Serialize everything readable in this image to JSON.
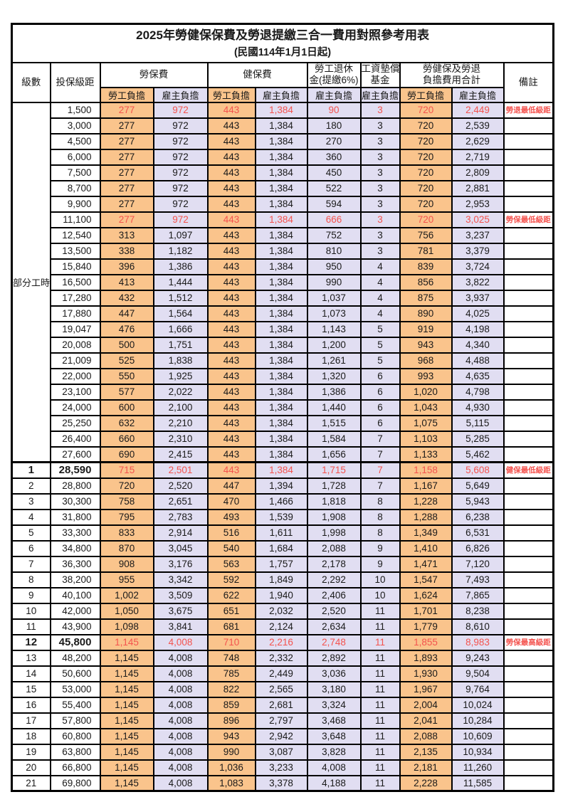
{
  "colors": {
    "orange": "#fac48c",
    "lavender": "#e1def2",
    "red": "#f4534e",
    "border": "#000000"
  },
  "title": "2025年勞健保保費及勞退提繳三合一費用對照參考用表",
  "subtitle": "(民國114年1月1日起)",
  "header": {
    "col_level": "級數",
    "col_salary": "投保級距",
    "grp_labor": "勞保費",
    "grp_health": "健保費",
    "grp_pension_l1": "勞工退休",
    "grp_pension_l2": "金(提繳6%)",
    "grp_wage_l1": "工資墊償",
    "grp_wage_l2": "基金",
    "grp_total_l1": "勞健保及勞退",
    "grp_total_l2": "負擔費用合計",
    "col_note": "備註",
    "sub_employee": "勞工負擔",
    "sub_employer": "雇主負擔"
  },
  "table": {
    "part_time_label": "部分工時",
    "part_time_rowspan": 23,
    "rows": [
      {
        "lv": null,
        "sal": "1,500",
        "v": [
          "277",
          "972",
          "443",
          "1,384",
          "90",
          "3",
          "720",
          "2,449"
        ],
        "note": "勞退最低級距",
        "red": true,
        "bold": false,
        "sep": false
      },
      {
        "lv": null,
        "sal": "3,000",
        "v": [
          "277",
          "972",
          "443",
          "1,384",
          "180",
          "3",
          "720",
          "2,539"
        ],
        "note": "",
        "red": false,
        "bold": false,
        "sep": false
      },
      {
        "lv": null,
        "sal": "4,500",
        "v": [
          "277",
          "972",
          "443",
          "1,384",
          "270",
          "3",
          "720",
          "2,629"
        ],
        "note": "",
        "red": false,
        "bold": false,
        "sep": false
      },
      {
        "lv": null,
        "sal": "6,000",
        "v": [
          "277",
          "972",
          "443",
          "1,384",
          "360",
          "3",
          "720",
          "2,719"
        ],
        "note": "",
        "red": false,
        "bold": false,
        "sep": false
      },
      {
        "lv": null,
        "sal": "7,500",
        "v": [
          "277",
          "972",
          "443",
          "1,384",
          "450",
          "3",
          "720",
          "2,809"
        ],
        "note": "",
        "red": false,
        "bold": false,
        "sep": false
      },
      {
        "lv": null,
        "sal": "8,700",
        "v": [
          "277",
          "972",
          "443",
          "1,384",
          "522",
          "3",
          "720",
          "2,881"
        ],
        "note": "",
        "red": false,
        "bold": false,
        "sep": false
      },
      {
        "lv": null,
        "sal": "9,900",
        "v": [
          "277",
          "972",
          "443",
          "1,384",
          "594",
          "3",
          "720",
          "2,953"
        ],
        "note": "",
        "red": false,
        "bold": false,
        "sep": false
      },
      {
        "lv": null,
        "sal": "11,100",
        "v": [
          "277",
          "972",
          "443",
          "1,384",
          "666",
          "3",
          "720",
          "3,025"
        ],
        "note": "勞保最低級距",
        "red": true,
        "bold": false,
        "sep": false
      },
      {
        "lv": null,
        "sal": "12,540",
        "v": [
          "313",
          "1,097",
          "443",
          "1,384",
          "752",
          "3",
          "756",
          "3,237"
        ],
        "note": "",
        "red": false,
        "bold": false,
        "sep": false
      },
      {
        "lv": null,
        "sal": "13,500",
        "v": [
          "338",
          "1,182",
          "443",
          "1,384",
          "810",
          "3",
          "781",
          "3,379"
        ],
        "note": "",
        "red": false,
        "bold": false,
        "sep": false
      },
      {
        "lv": null,
        "sal": "15,840",
        "v": [
          "396",
          "1,386",
          "443",
          "1,384",
          "950",
          "4",
          "839",
          "3,724"
        ],
        "note": "",
        "red": false,
        "bold": false,
        "sep": false
      },
      {
        "lv": null,
        "sal": "16,500",
        "v": [
          "413",
          "1,444",
          "443",
          "1,384",
          "990",
          "4",
          "856",
          "3,822"
        ],
        "note": "",
        "red": false,
        "bold": false,
        "sep": false
      },
      {
        "lv": null,
        "sal": "17,280",
        "v": [
          "432",
          "1,512",
          "443",
          "1,384",
          "1,037",
          "4",
          "875",
          "3,937"
        ],
        "note": "",
        "red": false,
        "bold": false,
        "sep": false
      },
      {
        "lv": null,
        "sal": "17,880",
        "v": [
          "447",
          "1,564",
          "443",
          "1,384",
          "1,073",
          "4",
          "890",
          "4,025"
        ],
        "note": "",
        "red": false,
        "bold": false,
        "sep": false
      },
      {
        "lv": null,
        "sal": "19,047",
        "v": [
          "476",
          "1,666",
          "443",
          "1,384",
          "1,143",
          "5",
          "919",
          "4,198"
        ],
        "note": "",
        "red": false,
        "bold": false,
        "sep": false
      },
      {
        "lv": null,
        "sal": "20,008",
        "v": [
          "500",
          "1,751",
          "443",
          "1,384",
          "1,200",
          "5",
          "943",
          "4,340"
        ],
        "note": "",
        "red": false,
        "bold": false,
        "sep": false
      },
      {
        "lv": null,
        "sal": "21,009",
        "v": [
          "525",
          "1,838",
          "443",
          "1,384",
          "1,261",
          "5",
          "968",
          "4,488"
        ],
        "note": "",
        "red": false,
        "bold": false,
        "sep": false
      },
      {
        "lv": null,
        "sal": "22,000",
        "v": [
          "550",
          "1,925",
          "443",
          "1,384",
          "1,320",
          "6",
          "993",
          "4,635"
        ],
        "note": "",
        "red": false,
        "bold": false,
        "sep": false
      },
      {
        "lv": null,
        "sal": "23,100",
        "v": [
          "577",
          "2,022",
          "443",
          "1,384",
          "1,386",
          "6",
          "1,020",
          "4,798"
        ],
        "note": "",
        "red": false,
        "bold": false,
        "sep": false
      },
      {
        "lv": null,
        "sal": "24,000",
        "v": [
          "600",
          "2,100",
          "443",
          "1,384",
          "1,440",
          "6",
          "1,043",
          "4,930"
        ],
        "note": "",
        "red": false,
        "bold": false,
        "sep": false
      },
      {
        "lv": null,
        "sal": "25,250",
        "v": [
          "632",
          "2,210",
          "443",
          "1,384",
          "1,515",
          "6",
          "1,075",
          "5,115"
        ],
        "note": "",
        "red": false,
        "bold": false,
        "sep": false
      },
      {
        "lv": null,
        "sal": "26,400",
        "v": [
          "660",
          "2,310",
          "443",
          "1,384",
          "1,584",
          "7",
          "1,103",
          "5,285"
        ],
        "note": "",
        "red": false,
        "bold": false,
        "sep": false
      },
      {
        "lv": null,
        "sal": "27,600",
        "v": [
          "690",
          "2,415",
          "443",
          "1,384",
          "1,656",
          "7",
          "1,133",
          "5,462"
        ],
        "note": "",
        "red": false,
        "bold": false,
        "sep": false
      },
      {
        "lv": "1",
        "sal": "28,590",
        "v": [
          "715",
          "2,501",
          "443",
          "1,384",
          "1,715",
          "7",
          "1,158",
          "5,608"
        ],
        "note": "健保最低級距",
        "red": true,
        "bold": true,
        "sep": true
      },
      {
        "lv": "2",
        "sal": "28,800",
        "v": [
          "720",
          "2,520",
          "447",
          "1,394",
          "1,728",
          "7",
          "1,167",
          "5,649"
        ],
        "note": "",
        "red": false,
        "bold": false,
        "sep": false
      },
      {
        "lv": "3",
        "sal": "30,300",
        "v": [
          "758",
          "2,651",
          "470",
          "1,466",
          "1,818",
          "8",
          "1,228",
          "5,943"
        ],
        "note": "",
        "red": false,
        "bold": false,
        "sep": false
      },
      {
        "lv": "4",
        "sal": "31,800",
        "v": [
          "795",
          "2,783",
          "493",
          "1,539",
          "1,908",
          "8",
          "1,288",
          "6,238"
        ],
        "note": "",
        "red": false,
        "bold": false,
        "sep": false
      },
      {
        "lv": "5",
        "sal": "33,300",
        "v": [
          "833",
          "2,914",
          "516",
          "1,611",
          "1,998",
          "8",
          "1,349",
          "6,531"
        ],
        "note": "",
        "red": false,
        "bold": false,
        "sep": false
      },
      {
        "lv": "6",
        "sal": "34,800",
        "v": [
          "870",
          "3,045",
          "540",
          "1,684",
          "2,088",
          "9",
          "1,410",
          "6,826"
        ],
        "note": "",
        "red": false,
        "bold": false,
        "sep": false
      },
      {
        "lv": "7",
        "sal": "36,300",
        "v": [
          "908",
          "3,176",
          "563",
          "1,757",
          "2,178",
          "9",
          "1,471",
          "7,120"
        ],
        "note": "",
        "red": false,
        "bold": false,
        "sep": false
      },
      {
        "lv": "8",
        "sal": "38,200",
        "v": [
          "955",
          "3,342",
          "592",
          "1,849",
          "2,292",
          "10",
          "1,547",
          "7,493"
        ],
        "note": "",
        "red": false,
        "bold": false,
        "sep": false
      },
      {
        "lv": "9",
        "sal": "40,100",
        "v": [
          "1,002",
          "3,509",
          "622",
          "1,940",
          "2,406",
          "10",
          "1,624",
          "7,865"
        ],
        "note": "",
        "red": false,
        "bold": false,
        "sep": false
      },
      {
        "lv": "10",
        "sal": "42,000",
        "v": [
          "1,050",
          "3,675",
          "651",
          "2,032",
          "2,520",
          "11",
          "1,701",
          "8,238"
        ],
        "note": "",
        "red": false,
        "bold": false,
        "sep": false
      },
      {
        "lv": "11",
        "sal": "43,900",
        "v": [
          "1,098",
          "3,841",
          "681",
          "2,124",
          "2,634",
          "11",
          "1,779",
          "8,610"
        ],
        "note": "",
        "red": false,
        "bold": false,
        "sep": false
      },
      {
        "lv": "12",
        "sal": "45,800",
        "v": [
          "1,145",
          "4,008",
          "710",
          "2,216",
          "2,748",
          "11",
          "1,855",
          "8,983"
        ],
        "note": "勞保最高級距",
        "red": true,
        "bold": true,
        "sep": false
      },
      {
        "lv": "13",
        "sal": "48,200",
        "v": [
          "1,145",
          "4,008",
          "748",
          "2,332",
          "2,892",
          "11",
          "1,893",
          "9,243"
        ],
        "note": "",
        "red": false,
        "bold": false,
        "sep": false
      },
      {
        "lv": "14",
        "sal": "50,600",
        "v": [
          "1,145",
          "4,008",
          "785",
          "2,449",
          "3,036",
          "11",
          "1,930",
          "9,504"
        ],
        "note": "",
        "red": false,
        "bold": false,
        "sep": false
      },
      {
        "lv": "15",
        "sal": "53,000",
        "v": [
          "1,145",
          "4,008",
          "822",
          "2,565",
          "3,180",
          "11",
          "1,967",
          "9,764"
        ],
        "note": "",
        "red": false,
        "bold": false,
        "sep": false
      },
      {
        "lv": "16",
        "sal": "55,400",
        "v": [
          "1,145",
          "4,008",
          "859",
          "2,681",
          "3,324",
          "11",
          "2,004",
          "10,024"
        ],
        "note": "",
        "red": false,
        "bold": false,
        "sep": false
      },
      {
        "lv": "17",
        "sal": "57,800",
        "v": [
          "1,145",
          "4,008",
          "896",
          "2,797",
          "3,468",
          "11",
          "2,041",
          "10,284"
        ],
        "note": "",
        "red": false,
        "bold": false,
        "sep": false
      },
      {
        "lv": "18",
        "sal": "60,800",
        "v": [
          "1,145",
          "4,008",
          "943",
          "2,942",
          "3,648",
          "11",
          "2,088",
          "10,609"
        ],
        "note": "",
        "red": false,
        "bold": false,
        "sep": false
      },
      {
        "lv": "19",
        "sal": "63,800",
        "v": [
          "1,145",
          "4,008",
          "990",
          "3,087",
          "3,828",
          "11",
          "2,135",
          "10,934"
        ],
        "note": "",
        "red": false,
        "bold": false,
        "sep": false
      },
      {
        "lv": "20",
        "sal": "66,800",
        "v": [
          "1,145",
          "4,008",
          "1,036",
          "3,233",
          "4,008",
          "11",
          "2,181",
          "11,260"
        ],
        "note": "",
        "red": false,
        "bold": false,
        "sep": false
      },
      {
        "lv": "21",
        "sal": "69,800",
        "v": [
          "1,145",
          "4,008",
          "1,083",
          "3,378",
          "4,188",
          "11",
          "2,228",
          "11,585"
        ],
        "note": "",
        "red": false,
        "bold": false,
        "sep": false
      }
    ]
  }
}
